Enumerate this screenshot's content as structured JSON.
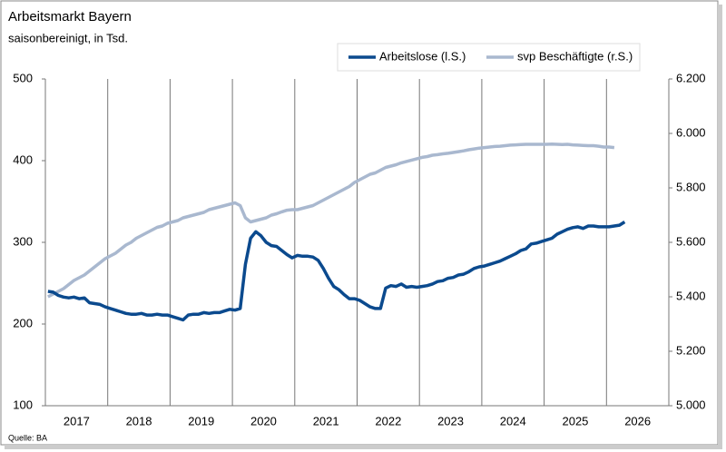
{
  "chart_data": {
    "type": "line",
    "title": "Arbeitsmarkt Bayern",
    "subtitle": "saisonbereinigt, in Tsd.",
    "source": "Quelle: BA",
    "categories": [
      null,
      null,
      null,
      null,
      null,
      "2017",
      null,
      null,
      null,
      null,
      null,
      null,
      null,
      null,
      null,
      null,
      null,
      "2018",
      null,
      null,
      null,
      null,
      null,
      null,
      null,
      null,
      null,
      null,
      null,
      "2019",
      null,
      null,
      null,
      null,
      null,
      null,
      null,
      null,
      null,
      null,
      null,
      "2020",
      null,
      null,
      null,
      null,
      null,
      null,
      null,
      null,
      null,
      null,
      null,
      "2021",
      null,
      null,
      null,
      null,
      null,
      null,
      null,
      null,
      null,
      null,
      null,
      "2022",
      null,
      null,
      null,
      null,
      null,
      null,
      null,
      null,
      null,
      null,
      null,
      "2023",
      null,
      null,
      null,
      null,
      null,
      null,
      null,
      null,
      null,
      null,
      null,
      "2024",
      null,
      null,
      null,
      null,
      null,
      null,
      null,
      null,
      null,
      null,
      null,
      "2025",
      null,
      null,
      null,
      null,
      null,
      null,
      null,
      null,
      null,
      null,
      null,
      "2026",
      null,
      null,
      null,
      null,
      null,
      null
    ],
    "series": [
      {
        "name": "Arbeitslose (l.S.)",
        "color": "#0b4a8e",
        "axis": "y",
        "values": [
          240,
          239,
          235,
          233,
          232,
          233,
          231,
          232,
          226,
          225,
          224,
          221,
          219,
          217,
          215,
          213,
          212,
          212,
          213,
          211,
          211,
          212,
          211,
          211,
          209,
          207,
          205,
          211,
          212,
          212,
          214,
          213,
          214,
          214,
          216,
          218,
          217,
          219,
          273,
          305,
          313,
          308,
          300,
          296,
          295,
          290,
          285,
          281,
          284,
          283,
          283,
          282,
          278,
          268,
          256,
          246,
          242,
          236,
          231,
          231,
          229,
          225,
          221,
          219,
          219,
          244,
          247,
          246,
          249,
          245,
          246,
          245,
          246,
          247,
          249,
          252,
          253,
          256,
          257,
          260,
          261,
          264,
          268,
          270,
          271,
          273,
          275,
          277,
          280,
          283,
          286,
          290,
          292,
          298,
          299,
          301,
          303,
          305,
          310,
          313,
          316,
          318,
          319,
          317,
          320,
          320,
          319,
          319,
          319,
          320,
          321,
          325,
          null,
          null,
          null,
          null,
          null,
          null,
          null,
          null
        ]
      },
      {
        "name": "svp Beschäftigte (r.S.)",
        "color": "#a9b8cf",
        "axis": "y2",
        "values": [
          5400,
          5410,
          5420,
          5430,
          5445,
          5460,
          5470,
          5480,
          5495,
          5510,
          5525,
          5540,
          5550,
          5560,
          5575,
          5590,
          5600,
          5615,
          5625,
          5635,
          5645,
          5655,
          5660,
          5670,
          5675,
          5680,
          5690,
          5695,
          5700,
          5705,
          5710,
          5720,
          5725,
          5730,
          5735,
          5740,
          5745,
          5735,
          5690,
          5675,
          5680,
          5685,
          5690,
          5700,
          5705,
          5712,
          5718,
          5720,
          5720,
          5725,
          5730,
          5735,
          5745,
          5755,
          5765,
          5775,
          5785,
          5795,
          5805,
          5820,
          5830,
          5840,
          5850,
          5855,
          5865,
          5875,
          5880,
          5885,
          5892,
          5897,
          5902,
          5907,
          5912,
          5915,
          5920,
          5922,
          5925,
          5927,
          5930,
          5933,
          5936,
          5940,
          5943,
          5946,
          5948,
          5950,
          5952,
          5953,
          5955,
          5957,
          5958,
          5959,
          5960,
          5960,
          5960,
          5960,
          5960,
          5961,
          5960,
          5959,
          5960,
          5958,
          5957,
          5956,
          5955,
          5955,
          5953,
          5950,
          5950,
          5948,
          null,
          null,
          null,
          null,
          null,
          null,
          null,
          null,
          null,
          null
        ]
      }
    ],
    "ylim": [
      100,
      500
    ],
    "yticks": [
      100,
      200,
      300,
      400,
      500
    ],
    "y2lim": [
      5000,
      6200
    ],
    "y2ticks": [
      {
        "value": 5000,
        "label": "5.000"
      },
      {
        "value": 5200,
        "label": "5.200"
      },
      {
        "value": 5400,
        "label": "5.400"
      },
      {
        "value": 5600,
        "label": "5.600"
      },
      {
        "value": 5800,
        "label": "5.800"
      },
      {
        "value": 6000,
        "label": "6.000"
      },
      {
        "value": 6200,
        "label": "6.200"
      }
    ]
  }
}
